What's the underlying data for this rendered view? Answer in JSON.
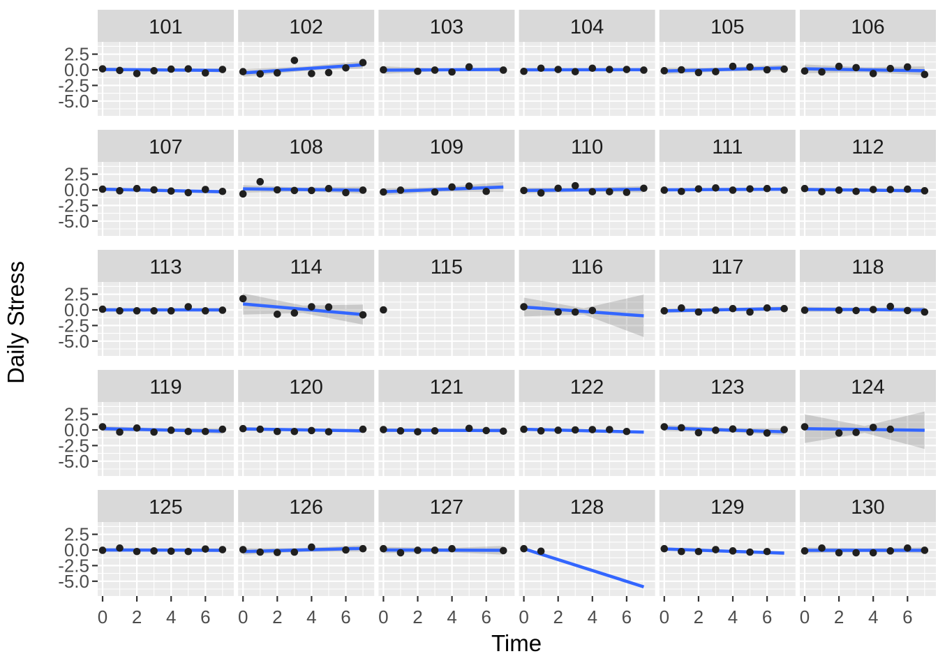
{
  "colors": {
    "panel_bg": "#EBEBEB",
    "strip_bg": "#D9D9D9",
    "grid_line": "#FFFFFF",
    "smooth_line": "#3366FF",
    "point": "#1F1F1F",
    "ci_band": "rgba(100,100,100,0.25)",
    "tick_mark": "#333333",
    "tick_label": "#4D4D4D",
    "strip_text": "#1A1A1A",
    "axis_title": "#000000"
  },
  "chart_data": {
    "type": "scatter",
    "title": "",
    "xlabel": "Time",
    "ylabel": "Daily Stress",
    "legend": false,
    "grid": "white major and minor gridlines on gray panels",
    "facet_layout": {
      "rows": 5,
      "cols": 6,
      "strip_position": "top"
    },
    "x_ticks": {
      "labels": [
        "0",
        "2",
        "4",
        "6"
      ],
      "values": [
        0,
        2,
        4,
        6
      ]
    },
    "y_ticks": {
      "labels": [
        "2.5",
        "0.0",
        "-2.5",
        "-5.0"
      ],
      "values": [
        2.5,
        0,
        -2.5,
        -5
      ]
    },
    "x_minor_ticks": [
      1,
      3,
      5,
      7
    ],
    "y_minor_ticks": [
      3.75,
      1.25,
      -1.25,
      -3.75,
      -6.25
    ],
    "x_range": [
      -0.3,
      7.65
    ],
    "y_range": [
      -7.4,
      4.45
    ],
    "smooth_method": "lm with confidence band",
    "facets": [
      {
        "id": "101",
        "points": [
          [
            0,
            0.15
          ],
          [
            1,
            -0.1
          ],
          [
            2,
            -0.6
          ],
          [
            3,
            -0.15
          ],
          [
            4,
            0.1
          ],
          [
            5,
            0.15
          ],
          [
            6,
            -0.5
          ],
          [
            7,
            0.05
          ]
        ],
        "line": [
          0.05,
          -0.1
        ],
        "band": [
          0.3,
          0.2,
          0.3
        ]
      },
      {
        "id": "102",
        "points": [
          [
            0,
            -0.3
          ],
          [
            1,
            -0.65
          ],
          [
            2,
            -0.5
          ],
          [
            3,
            1.5
          ],
          [
            4,
            -0.6
          ],
          [
            5,
            -0.45
          ],
          [
            6,
            0.3
          ],
          [
            7,
            1.15
          ]
        ],
        "line": [
          -0.5,
          0.8
        ],
        "band": [
          0.6,
          0.35,
          0.6
        ]
      },
      {
        "id": "103",
        "points": [
          [
            0,
            0
          ],
          [
            2,
            -0.25
          ],
          [
            3,
            -0.05
          ],
          [
            4,
            -0.35
          ],
          [
            5,
            0.45
          ],
          [
            7,
            -0.05
          ]
        ],
        "line": [
          -0.05,
          0.05
        ],
        "band": [
          0.6,
          0.2,
          0.35
        ]
      },
      {
        "id": "104",
        "points": [
          [
            0,
            -0.25
          ],
          [
            1,
            0.25
          ],
          [
            2,
            0.05
          ],
          [
            3,
            -0.3
          ],
          [
            4,
            0.25
          ],
          [
            5,
            0.05
          ],
          [
            6,
            0.05
          ],
          [
            7,
            -0.05
          ]
        ],
        "line": [
          0,
          0.02
        ],
        "band": [
          0.25,
          0.15,
          0.25
        ]
      },
      {
        "id": "105",
        "points": [
          [
            0,
            -0.15
          ],
          [
            1,
            0
          ],
          [
            2,
            -0.45
          ],
          [
            3,
            -0.3
          ],
          [
            4,
            0.55
          ],
          [
            5,
            0.45
          ],
          [
            6,
            0
          ],
          [
            7,
            0.1
          ]
        ],
        "line": [
          -0.2,
          0.3
        ],
        "band": [
          0.5,
          0.3,
          0.5
        ]
      },
      {
        "id": "106",
        "points": [
          [
            0,
            -0.2
          ],
          [
            1,
            -0.35
          ],
          [
            2,
            0.55
          ],
          [
            3,
            0.35
          ],
          [
            4,
            -0.6
          ],
          [
            5,
            0.2
          ],
          [
            6,
            0.45
          ],
          [
            7,
            -0.75
          ]
        ],
        "line": [
          0.15,
          -0.15
        ],
        "band": [
          0.7,
          0.4,
          0.7
        ]
      },
      {
        "id": "107",
        "points": [
          [
            0,
            0.1
          ],
          [
            1,
            -0.15
          ],
          [
            2,
            0.2
          ],
          [
            3,
            0
          ],
          [
            4,
            -0.2
          ],
          [
            5,
            -0.45
          ],
          [
            6,
            0.05
          ],
          [
            7,
            -0.25
          ]
        ],
        "line": [
          0.1,
          -0.3
        ],
        "band": [
          0.3,
          0.2,
          0.3
        ]
      },
      {
        "id": "108",
        "points": [
          [
            0,
            -0.65
          ],
          [
            1,
            1.3
          ],
          [
            2,
            0
          ],
          [
            3,
            -0.1
          ],
          [
            4,
            -0.1
          ],
          [
            5,
            0.2
          ],
          [
            6,
            -0.45
          ],
          [
            7,
            -0.05
          ]
        ],
        "line": [
          0.15,
          -0.05
        ],
        "band": [
          0.6,
          0.3,
          0.55
        ]
      },
      {
        "id": "109",
        "points": [
          [
            0,
            -0.35
          ],
          [
            1,
            -0.05
          ],
          [
            3,
            -0.35
          ],
          [
            4,
            0.45
          ],
          [
            5,
            0.6
          ],
          [
            6,
            -0.25
          ]
        ],
        "line": [
          -0.3,
          0.45
        ],
        "band": [
          0.55,
          0.35,
          0.8
        ]
      },
      {
        "id": "110",
        "points": [
          [
            0,
            -0.1
          ],
          [
            1,
            -0.5
          ],
          [
            2,
            0.25
          ],
          [
            3,
            0.65
          ],
          [
            4,
            -0.3
          ],
          [
            5,
            -0.3
          ],
          [
            6,
            -0.4
          ],
          [
            7,
            0.25
          ]
        ],
        "line": [
          -0.1,
          0.1
        ],
        "band": [
          0.45,
          0.3,
          0.5
        ]
      },
      {
        "id": "111",
        "points": [
          [
            0,
            -0.05
          ],
          [
            1,
            -0.25
          ],
          [
            2,
            0.15
          ],
          [
            3,
            0.3
          ],
          [
            4,
            -0.05
          ],
          [
            5,
            0.15
          ],
          [
            6,
            0.2
          ],
          [
            7,
            -0.05
          ]
        ],
        "line": [
          0,
          0.1
        ],
        "band": [
          0.25,
          0.15,
          0.25
        ]
      },
      {
        "id": "112",
        "points": [
          [
            0,
            0.2
          ],
          [
            1,
            -0.3
          ],
          [
            2,
            -0.05
          ],
          [
            3,
            -0.25
          ],
          [
            4,
            0.05
          ],
          [
            5,
            0.05
          ],
          [
            6,
            0.1
          ],
          [
            7,
            -0.15
          ]
        ],
        "line": [
          0.05,
          -0.15
        ],
        "band": [
          0.3,
          0.2,
          0.3
        ]
      },
      {
        "id": "113",
        "points": [
          [
            0,
            0.1
          ],
          [
            1,
            -0.15
          ],
          [
            2,
            -0.15
          ],
          [
            3,
            -0.15
          ],
          [
            4,
            -0.15
          ],
          [
            5,
            0.5
          ],
          [
            6,
            -0.15
          ],
          [
            7,
            -0.05
          ]
        ],
        "line": [
          0,
          0
        ],
        "band": [
          0.3,
          0.2,
          0.3
        ]
      },
      {
        "id": "114",
        "points": [
          [
            0,
            1.8
          ],
          [
            2,
            -0.7
          ],
          [
            3,
            -0.5
          ],
          [
            4,
            0.5
          ],
          [
            5,
            0.45
          ],
          [
            7,
            -0.8
          ]
        ],
        "line": [
          0.95,
          -0.75
        ],
        "band": [
          1.7,
          0.6,
          1.6
        ]
      },
      {
        "id": "115",
        "points": [
          [
            0,
            0
          ]
        ],
        "line": null,
        "band": null
      },
      {
        "id": "116",
        "points": [
          [
            0,
            0.5
          ],
          [
            2,
            -0.35
          ],
          [
            3,
            -0.35
          ],
          [
            4,
            -0.1
          ]
        ],
        "line": [
          0.45,
          -0.95
        ],
        "band": [
          1.5,
          0.5,
          3.4
        ]
      },
      {
        "id": "117",
        "points": [
          [
            0,
            -0.15
          ],
          [
            1,
            0.3
          ],
          [
            2,
            -0.35
          ],
          [
            3,
            -0.05
          ],
          [
            4,
            0.2
          ],
          [
            5,
            -0.35
          ],
          [
            6,
            0.3
          ],
          [
            7,
            0.2
          ]
        ],
        "line": [
          -0.15,
          0.2
        ],
        "band": [
          0.35,
          0.25,
          0.35
        ]
      },
      {
        "id": "118",
        "points": [
          [
            0,
            -0.05
          ],
          [
            2,
            -0.05
          ],
          [
            3,
            -0.1
          ],
          [
            4,
            0.05
          ],
          [
            5,
            0.55
          ],
          [
            6,
            -0.1
          ],
          [
            7,
            -0.35
          ]
        ],
        "line": [
          0.1,
          0
        ],
        "band": [
          0.4,
          0.25,
          0.45
        ]
      },
      {
        "id": "119",
        "points": [
          [
            0,
            0.5
          ],
          [
            1,
            -0.35
          ],
          [
            2,
            0.3
          ],
          [
            3,
            -0.35
          ],
          [
            4,
            -0.05
          ],
          [
            5,
            -0.25
          ],
          [
            6,
            -0.25
          ],
          [
            7,
            0.1
          ]
        ],
        "line": [
          0.2,
          -0.2
        ],
        "band": [
          0.4,
          0.25,
          0.45
        ]
      },
      {
        "id": "120",
        "points": [
          [
            0,
            0.2
          ],
          [
            1,
            0.1
          ],
          [
            2,
            -0.25
          ],
          [
            3,
            -0.25
          ],
          [
            4,
            -0.1
          ],
          [
            5,
            -0.3
          ],
          [
            7,
            0.1
          ]
        ],
        "line": [
          0.15,
          -0.15
        ],
        "band": [
          0.3,
          0.2,
          0.3
        ]
      },
      {
        "id": "121",
        "points": [
          [
            0,
            0.05
          ],
          [
            1,
            -0.15
          ],
          [
            2,
            -0.3
          ],
          [
            3,
            -0.15
          ],
          [
            5,
            0.25
          ],
          [
            6,
            -0.1
          ],
          [
            7,
            -0.2
          ]
        ],
        "line": [
          -0.05,
          -0.1
        ],
        "band": [
          0.3,
          0.2,
          0.3
        ]
      },
      {
        "id": "122",
        "points": [
          [
            0,
            0.1
          ],
          [
            1,
            -0.15
          ],
          [
            2,
            -0.05
          ],
          [
            3,
            0
          ],
          [
            4,
            0.05
          ],
          [
            5,
            0.05
          ],
          [
            6,
            -0.25
          ]
        ],
        "line": [
          0.1,
          -0.35
        ],
        "band": [
          0.2,
          0.15,
          0.25
        ]
      },
      {
        "id": "123",
        "points": [
          [
            0,
            0.5
          ],
          [
            1,
            0.35
          ],
          [
            2,
            -0.45
          ],
          [
            3,
            -0.05
          ],
          [
            4,
            0.15
          ],
          [
            5,
            -0.35
          ],
          [
            6,
            -0.5
          ],
          [
            7,
            0.05
          ]
        ],
        "line": [
          0.3,
          -0.3
        ],
        "band": [
          0.5,
          0.3,
          0.55
        ]
      },
      {
        "id": "124",
        "points": [
          [
            0,
            0.5
          ],
          [
            2,
            -0.5
          ],
          [
            3,
            -0.4
          ],
          [
            4,
            0.4
          ],
          [
            5,
            0.1
          ]
        ],
        "line": [
          0.2,
          -0.05
        ],
        "band": [
          2.3,
          0.55,
          3.0
        ]
      },
      {
        "id": "125",
        "points": [
          [
            0,
            -0.05
          ],
          [
            1,
            0.3
          ],
          [
            2,
            -0.25
          ],
          [
            3,
            -0.15
          ],
          [
            4,
            -0.2
          ],
          [
            5,
            -0.25
          ],
          [
            6,
            0.15
          ],
          [
            7,
            0.05
          ]
        ],
        "line": [
          0,
          -0.05
        ],
        "band": [
          0.3,
          0.2,
          0.3
        ]
      },
      {
        "id": "126",
        "points": [
          [
            0,
            0.05
          ],
          [
            1,
            -0.35
          ],
          [
            2,
            -0.4
          ],
          [
            3,
            -0.35
          ],
          [
            4,
            0.45
          ],
          [
            6,
            0
          ],
          [
            7,
            0.2
          ]
        ],
        "line": [
          -0.25,
          0.25
        ],
        "band": [
          0.5,
          0.3,
          0.5
        ]
      },
      {
        "id": "127",
        "points": [
          [
            0,
            0.2
          ],
          [
            1,
            -0.45
          ],
          [
            2,
            -0.05
          ],
          [
            3,
            -0.05
          ],
          [
            4,
            0.2
          ],
          [
            7,
            -0.1
          ]
        ],
        "line": [
          0,
          -0.05
        ],
        "band": [
          0.5,
          0.3,
          0.7
        ]
      },
      {
        "id": "128",
        "points": [
          [
            0,
            0.2
          ],
          [
            1,
            -0.2
          ]
        ],
        "line": [
          0.2,
          -5.9
        ],
        "band": null
      },
      {
        "id": "129",
        "points": [
          [
            0,
            0.2
          ],
          [
            1,
            -0.25
          ],
          [
            2,
            -0.25
          ],
          [
            3,
            0.05
          ],
          [
            4,
            -0.15
          ],
          [
            5,
            -0.35
          ],
          [
            6,
            -0.25
          ]
        ],
        "line": [
          0.15,
          -0.5
        ],
        "band": [
          0.25,
          0.18,
          0.3
        ]
      },
      {
        "id": "130",
        "points": [
          [
            0,
            -0.15
          ],
          [
            1,
            0.3
          ],
          [
            2,
            -0.45
          ],
          [
            3,
            -0.45
          ],
          [
            4,
            -0.45
          ],
          [
            5,
            -0.15
          ],
          [
            6,
            0.3
          ],
          [
            7,
            -0.05
          ]
        ],
        "line": [
          -0.05,
          -0.05
        ],
        "band": [
          0.45,
          0.3,
          0.45
        ]
      }
    ]
  }
}
